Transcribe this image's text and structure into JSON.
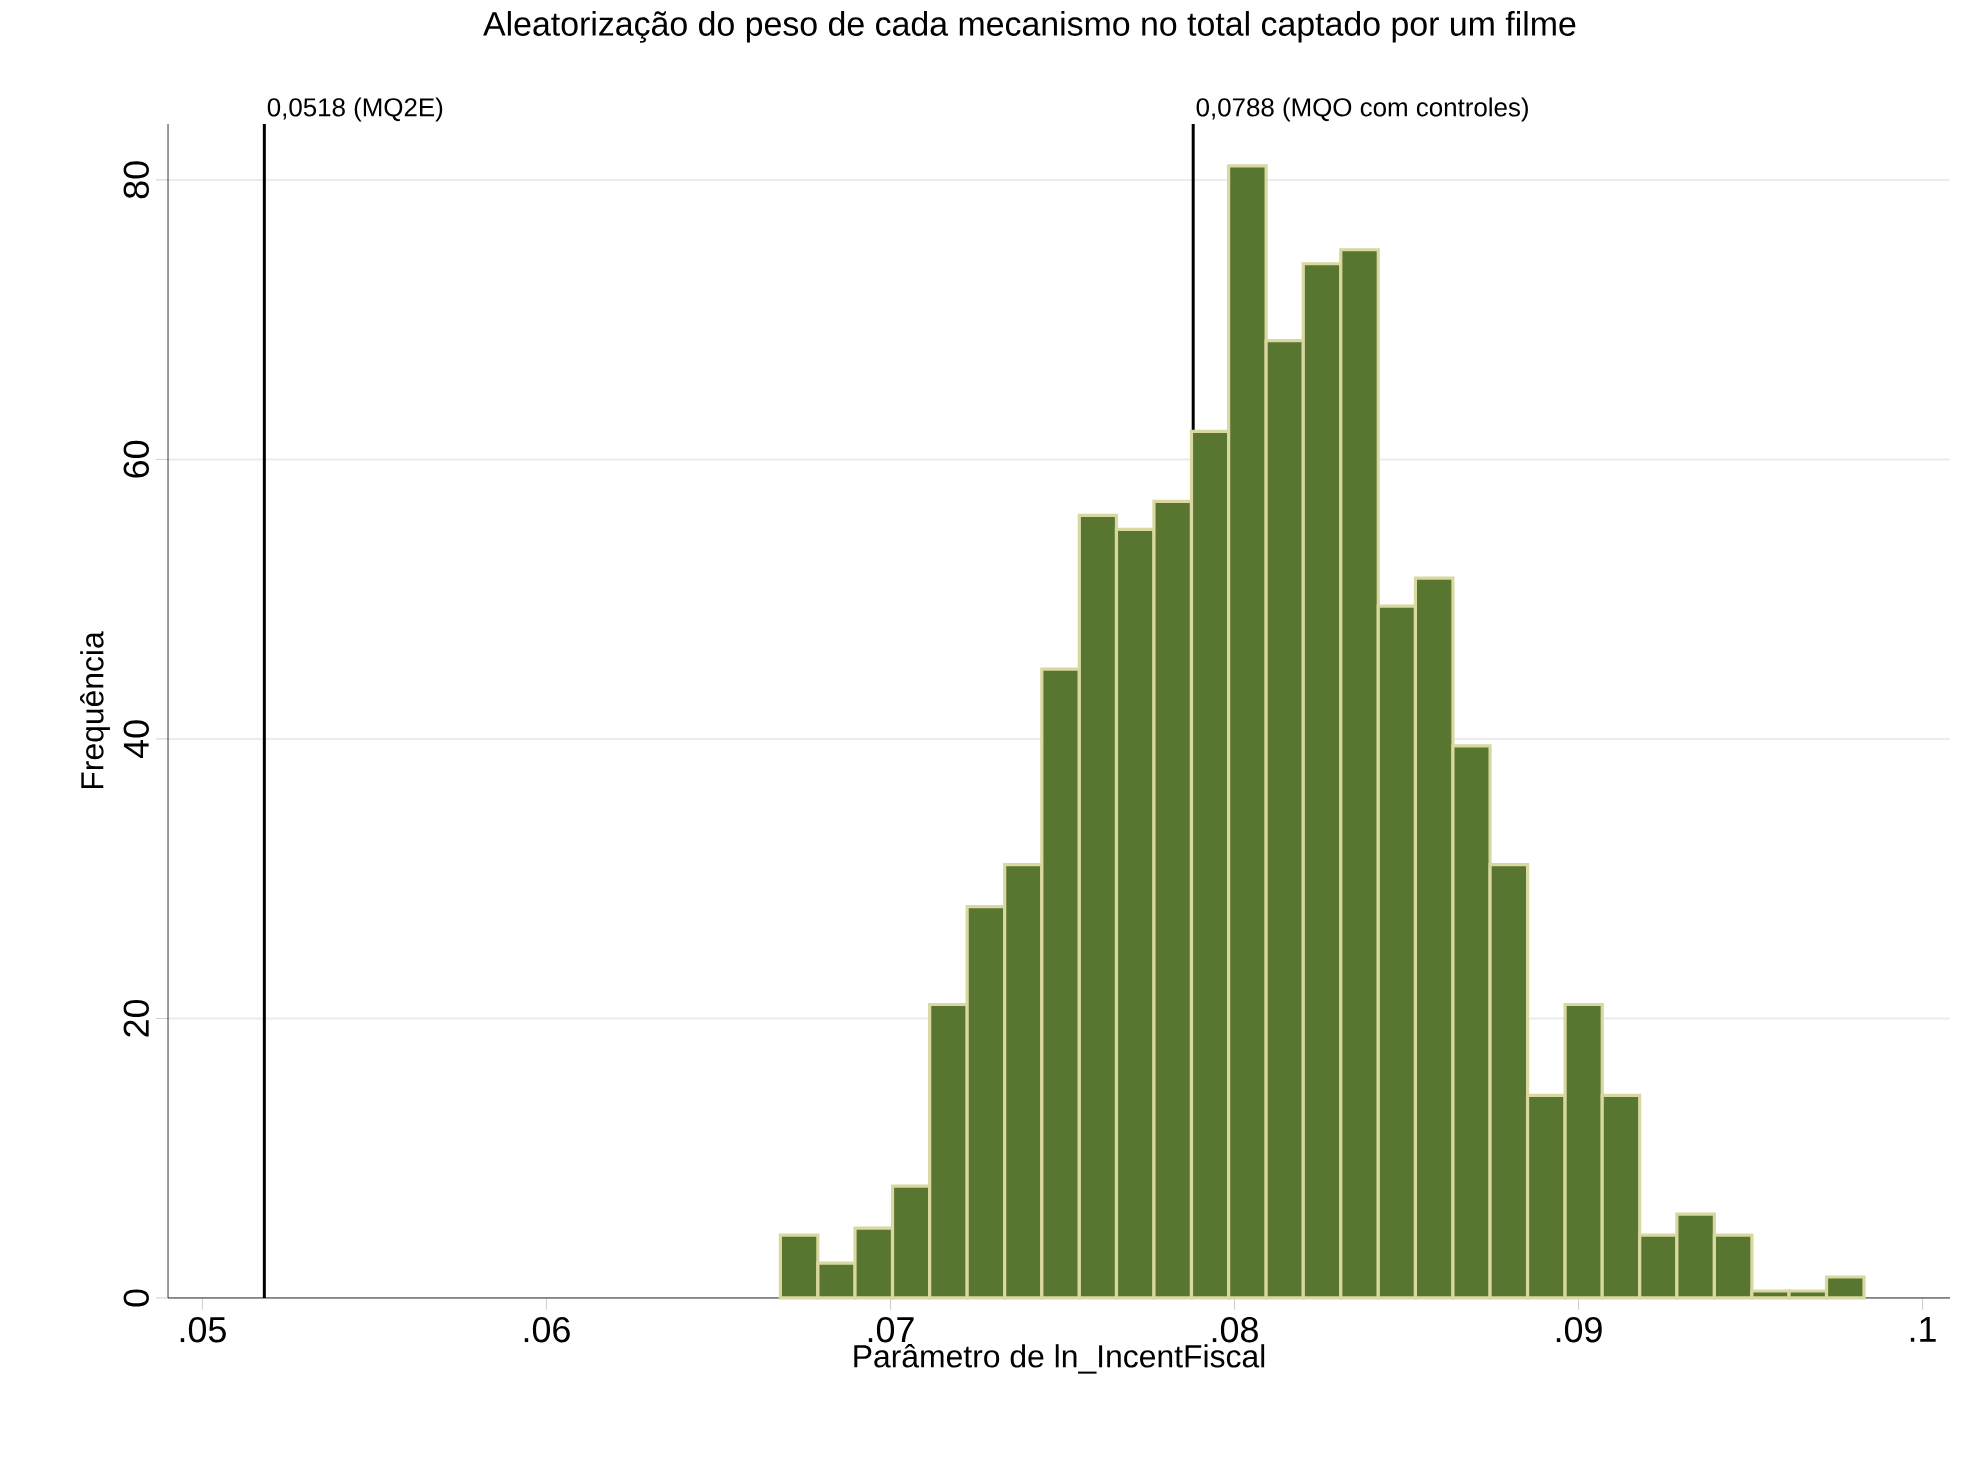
{
  "chart_data": {
    "type": "histogram",
    "title": "Aleatorização do peso de cada mecanismo no total captado por um filme",
    "xlabel": "Parâmetro de ln_IncentFiscal",
    "ylabel": "Frequência",
    "bins": [
      0.0668,
      0.06789,
      0.06897,
      0.07006,
      0.07114,
      0.07223,
      0.07332,
      0.0744,
      0.07549,
      0.07657,
      0.07766,
      0.07875,
      0.07983,
      0.08092,
      0.082,
      0.08309,
      0.08418,
      0.08526,
      0.08635,
      0.08743,
      0.08852,
      0.08961,
      0.09069,
      0.09178,
      0.09286,
      0.09395,
      0.09504,
      0.09612,
      0.09721,
      0.0983
    ],
    "values": [
      4.5,
      2.5,
      5,
      8,
      21,
      28,
      31,
      45,
      56,
      55,
      57,
      62,
      81,
      68.5,
      74,
      75,
      49.5,
      51.5,
      39.5,
      31,
      14.5,
      21,
      14.5,
      4.5,
      6,
      4.5,
      0.5,
      0.5,
      1.5
    ],
    "color": "#58762f",
    "xlim": [
      0.049,
      0.1008
    ],
    "ylim": [
      0,
      84
    ],
    "xticks": [
      {
        "value": 0.05,
        "label": ".05"
      },
      {
        "value": 0.06,
        "label": ".06"
      },
      {
        "value": 0.07,
        "label": ".07"
      },
      {
        "value": 0.08,
        "label": ".08"
      },
      {
        "value": 0.09,
        "label": ".09"
      },
      {
        "value": 0.1,
        "label": ".1"
      }
    ],
    "yticks": [
      0,
      20,
      40,
      60,
      80
    ],
    "grid": "y",
    "ref_lines": [
      {
        "axis": "x",
        "value": 0.0518,
        "label": "0,0518 (MQ2E)",
        "color": "#000000"
      },
      {
        "axis": "x",
        "value": 0.0788,
        "label": "0,0788 (MQO com controles)",
        "color": "#000000"
      }
    ]
  }
}
